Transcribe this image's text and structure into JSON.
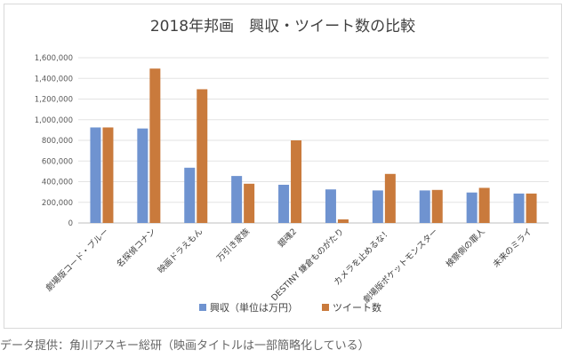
{
  "chart_data": {
    "type": "bar",
    "title": "2018年邦画　興収・ツイート数の比較",
    "categories": [
      "劇場版コード・ブルー",
      "名探偵コナン",
      "映画ドラえもん",
      "万引き家族",
      "銀魂2",
      "DESTINY 鎌倉ものがたり",
      "カメラを止めるな！",
      "劇場版ポケットモンスター",
      "検察側の罪人",
      "未来のミライ"
    ],
    "series": [
      {
        "name": "興収（単位は万円）",
        "color": "#6f93d0",
        "values": [
          925000,
          915000,
          535000,
          455000,
          370000,
          325000,
          315000,
          315000,
          295000,
          285000
        ]
      },
      {
        "name": "ツイート数",
        "color": "#c97a3c",
        "values": [
          925000,
          1495000,
          1295000,
          380000,
          800000,
          35000,
          475000,
          320000,
          340000,
          285000
        ]
      }
    ],
    "y_ticks": [
      "0",
      "200,000",
      "400,000",
      "600,000",
      "800,000",
      "1,000,000",
      "1,200,000",
      "1,400,000",
      "1,600,000"
    ],
    "ylim": [
      0,
      1600000
    ],
    "grid": true,
    "legend": "bottom"
  },
  "caption": "データ提供：角川アスキー総研（映画タイトルは一部簡略化している）"
}
